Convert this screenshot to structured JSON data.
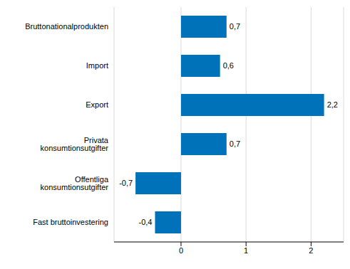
{
  "chart_data": {
    "type": "bar",
    "orientation": "horizontal",
    "categories": [
      "Bruttonationalprodukten",
      "Import",
      "Export",
      "Privata konsumtionsutgifter",
      "Offentliga konsumtionsutgifter",
      "Fast bruttoinvestering"
    ],
    "values": [
      0.7,
      0.6,
      2.2,
      0.7,
      -0.7,
      -0.4
    ],
    "value_labels": [
      "0,7",
      "0,6",
      "2,2",
      "0,7",
      "-0,7",
      "-0,4"
    ],
    "color": "#0072b9",
    "xlim": [
      -1.03,
      2.5
    ],
    "xticks": [
      0,
      1,
      2
    ],
    "grid": true,
    "data_labels": true
  }
}
